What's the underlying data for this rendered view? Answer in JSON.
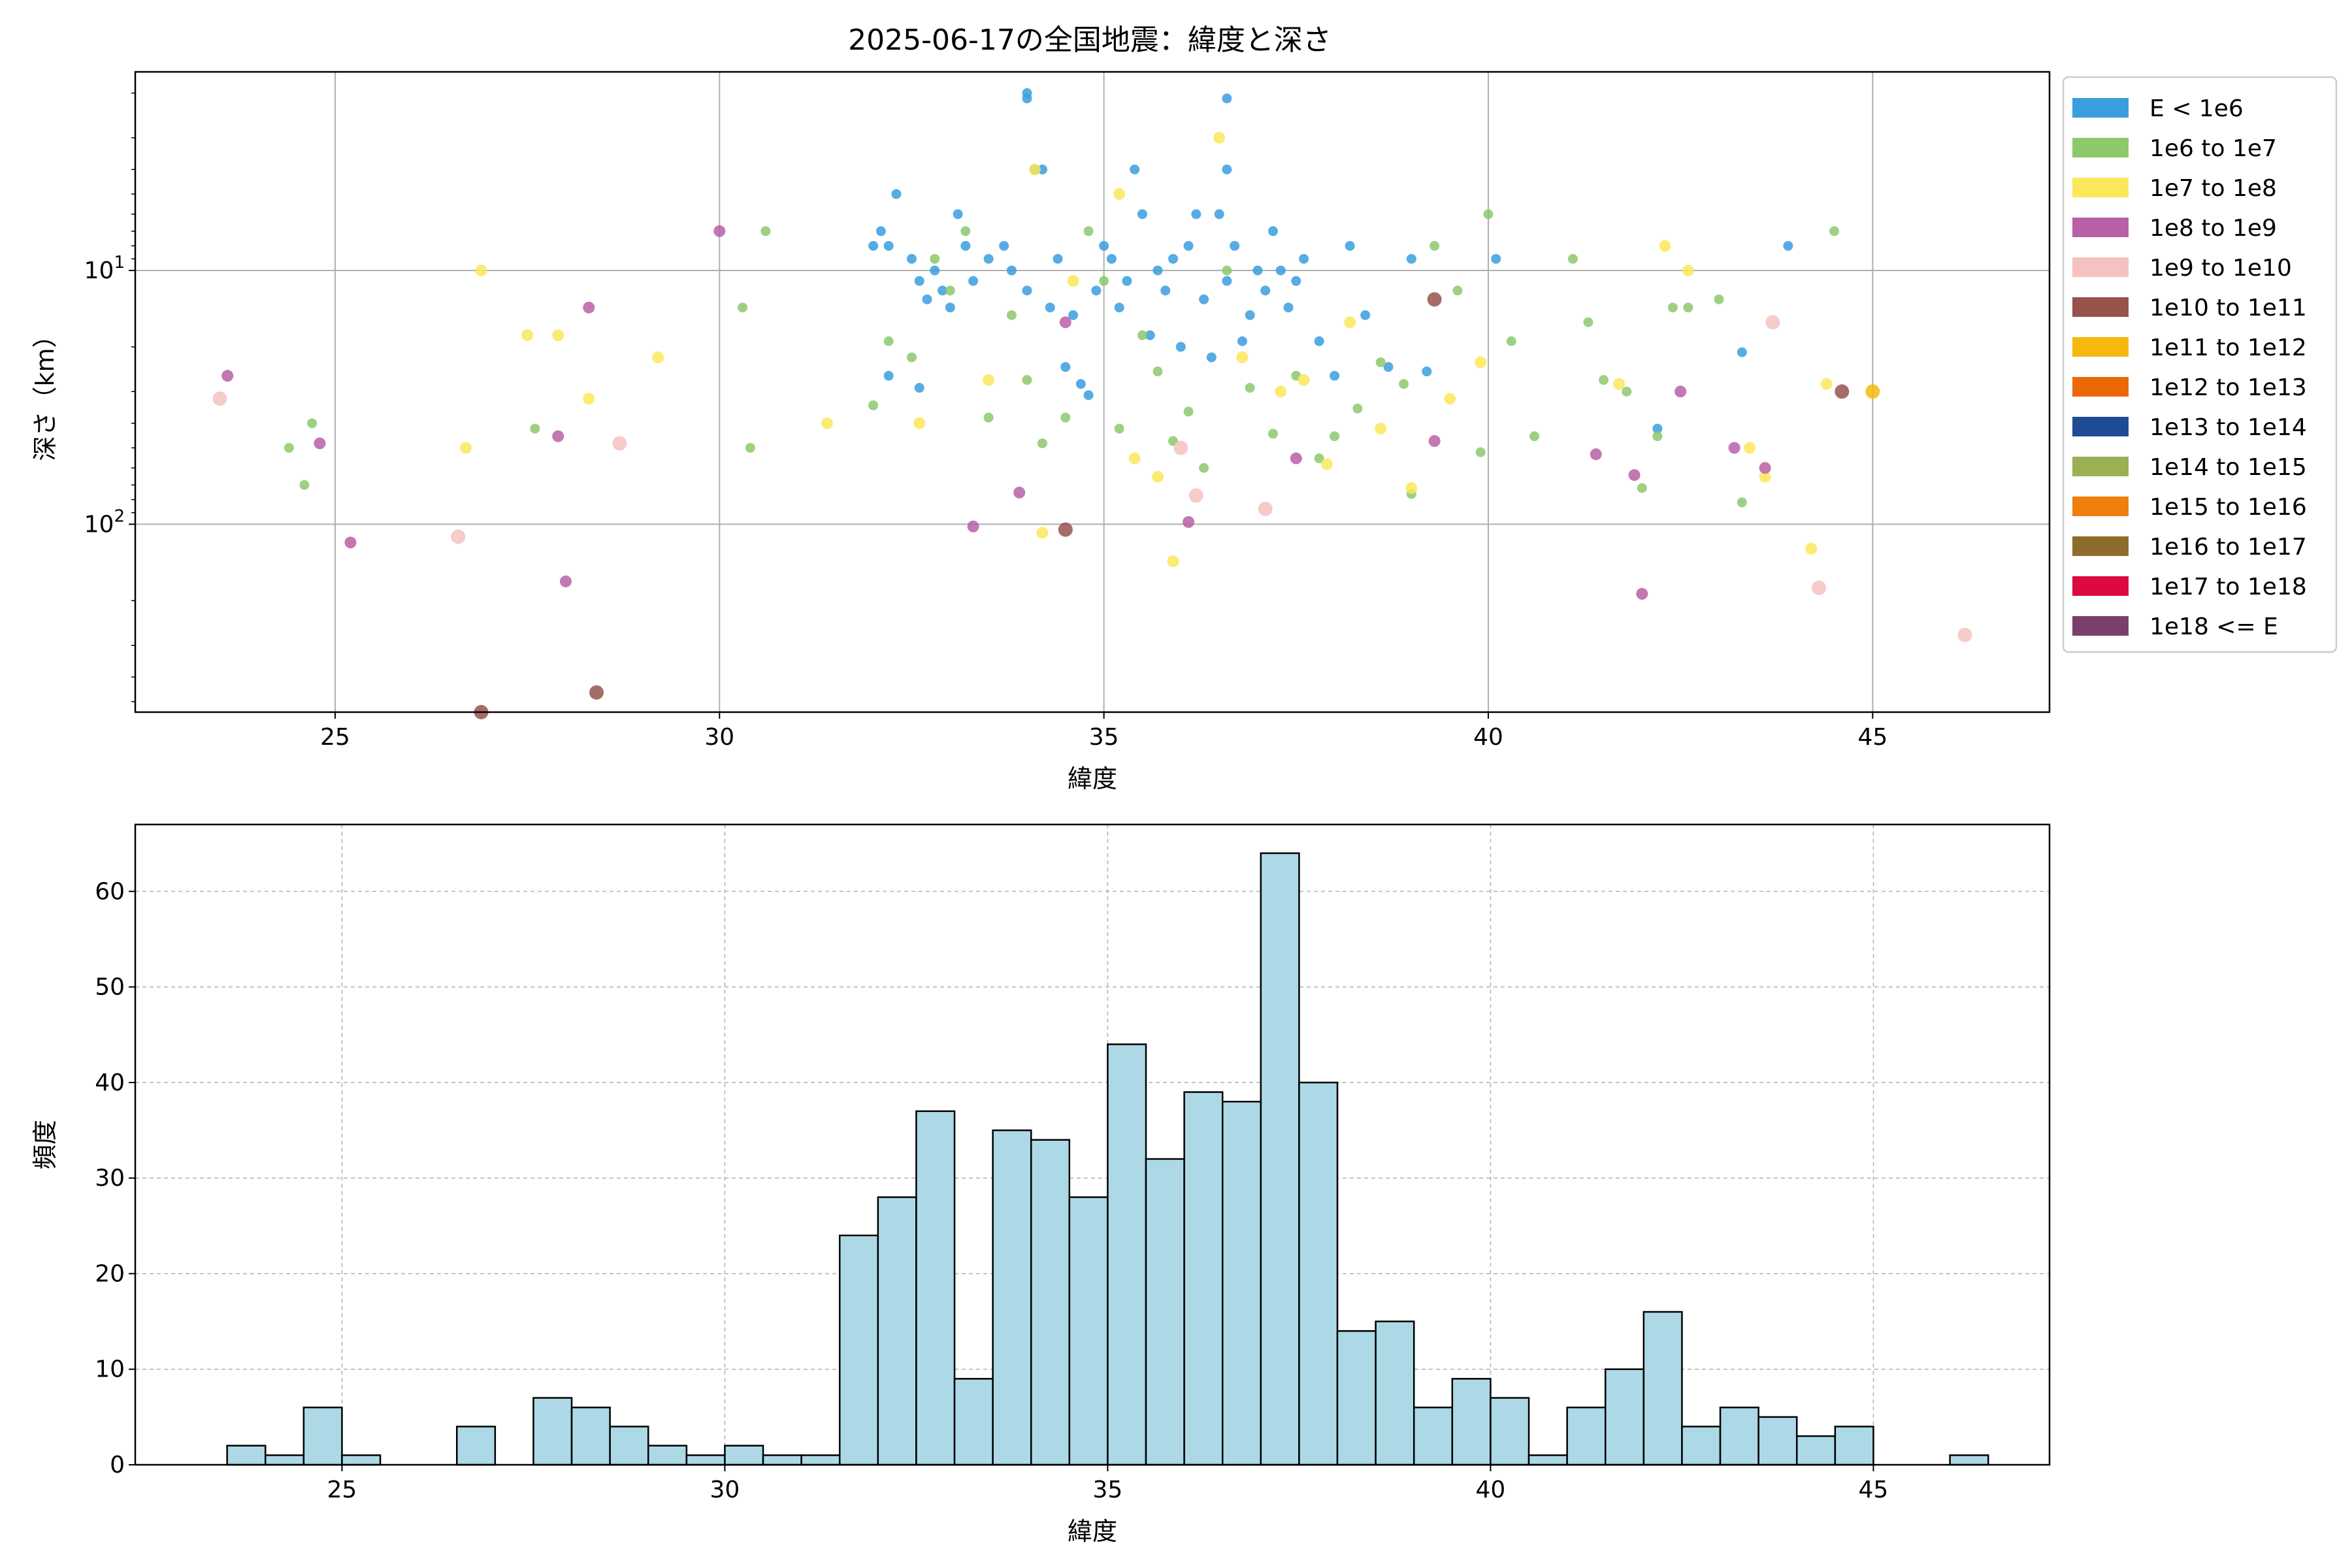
{
  "chart_data": [
    {
      "type": "scatter",
      "title": "2025-06-17の全国地震：緯度と深さ",
      "xlabel": "緯度",
      "ylabel": "深さ（km）",
      "xlim": [
        22.4,
        47.3
      ],
      "ylim": [
        550,
        1.65
      ],
      "yscale": "log",
      "y_inverted": true,
      "grid": true,
      "legend_position": "outside-right-top",
      "x_ticks": [
        "25",
        "30",
        "35",
        "40",
        "45"
      ],
      "x_tick_values": [
        25,
        30,
        35,
        40,
        45
      ],
      "y_ticks": [
        "10^1",
        "10^2"
      ],
      "y_tick_values": [
        10,
        100
      ],
      "legend": [
        {
          "label": "E < 1e6",
          "color": "#3a9ede"
        },
        {
          "label": "1e6 to 1e7",
          "color": "#8cc96b"
        },
        {
          "label": "1e7 to 1e8",
          "color": "#fbe85a"
        },
        {
          "label": "1e8 to 1e9",
          "color": "#b85fa6"
        },
        {
          "label": "1e9 to 1e10",
          "color": "#f4c2c0"
        },
        {
          "label": "1e10 to 1e11",
          "color": "#97524c"
        },
        {
          "label": "1e11 to 1e12",
          "color": "#f7b80e"
        },
        {
          "label": "1e12 to 1e13",
          "color": "#ec6707"
        },
        {
          "label": "1e13 to 1e14",
          "color": "#1f4b94"
        },
        {
          "label": "1e14 to 1e15",
          "color": "#9bb053"
        },
        {
          "label": "1e15 to 1e16",
          "color": "#ee7f0c"
        },
        {
          "label": "1e16 to 1e17",
          "color": "#8e6c2b"
        },
        {
          "label": "1e17 to 1e18",
          "color": "#dd0a3f"
        },
        {
          "label": "1e18 <= E",
          "color": "#7b3f6b"
        }
      ],
      "series": [
        {
          "name": "E < 1e6",
          "color": "#3a9ede",
          "points": [
            [
              32.0,
              8
            ],
            [
              32.1,
              7
            ],
            [
              32.2,
              8
            ],
            [
              32.3,
              5
            ],
            [
              32.5,
              9
            ],
            [
              32.6,
              11
            ],
            [
              32.7,
              13
            ],
            [
              32.8,
              10
            ],
            [
              32.9,
              12
            ],
            [
              33.0,
              14
            ],
            [
              33.1,
              6
            ],
            [
              33.2,
              8
            ],
            [
              33.3,
              11
            ],
            [
              33.5,
              9
            ],
            [
              33.7,
              8
            ],
            [
              33.8,
              10
            ],
            [
              34.0,
              12
            ],
            [
              34.0,
              2
            ],
            [
              34.1,
              4
            ],
            [
              34.2,
              4
            ],
            [
              34.3,
              14
            ],
            [
              34.4,
              9
            ],
            [
              34.5,
              24
            ],
            [
              34.6,
              15
            ],
            [
              34.7,
              28
            ],
            [
              34.8,
              31
            ],
            [
              34.9,
              12
            ],
            [
              35.0,
              8
            ],
            [
              35.1,
              9
            ],
            [
              35.2,
              14
            ],
            [
              35.3,
              11
            ],
            [
              35.4,
              4
            ],
            [
              35.5,
              6
            ],
            [
              35.6,
              18
            ],
            [
              35.7,
              10
            ],
            [
              35.8,
              12
            ],
            [
              35.9,
              9
            ],
            [
              36.0,
              20
            ],
            [
              36.1,
              8
            ],
            [
              36.2,
              6
            ],
            [
              36.3,
              13
            ],
            [
              36.4,
              22
            ],
            [
              36.5,
              6
            ],
            [
              36.6,
              11
            ],
            [
              36.7,
              8
            ],
            [
              36.8,
              19
            ],
            [
              36.9,
              15
            ],
            [
              37.0,
              10
            ],
            [
              37.1,
              12
            ],
            [
              37.2,
              7
            ],
            [
              37.3,
              10
            ],
            [
              37.4,
              14
            ],
            [
              37.5,
              11
            ],
            [
              37.6,
              9
            ],
            [
              37.8,
              19
            ],
            [
              38.0,
              26
            ],
            [
              38.2,
              8
            ],
            [
              38.4,
              15
            ],
            [
              38.7,
              24
            ],
            [
              39.0,
              9
            ],
            [
              39.2,
              25
            ],
            [
              40.1,
              9
            ],
            [
              42.2,
              42
            ],
            [
              43.3,
              21
            ],
            [
              43.9,
              8
            ],
            [
              36.6,
              4
            ],
            [
              34.0,
              2.1
            ],
            [
              36.6,
              2.1
            ],
            [
              32.2,
              26
            ],
            [
              32.6,
              29
            ]
          ]
        },
        {
          "name": "1e6 to 1e7",
          "color": "#8cc96b",
          "points": [
            [
              24.4,
              50
            ],
            [
              24.6,
              70
            ],
            [
              24.7,
              40
            ],
            [
              27.6,
              42
            ],
            [
              30.3,
              14
            ],
            [
              30.4,
              50
            ],
            [
              30.6,
              7
            ],
            [
              32.0,
              34
            ],
            [
              32.2,
              19
            ],
            [
              32.5,
              22
            ],
            [
              32.8,
              9
            ],
            [
              33.0,
              12
            ],
            [
              33.2,
              7
            ],
            [
              33.5,
              38
            ],
            [
              33.8,
              15
            ],
            [
              34.0,
              27
            ],
            [
              34.2,
              48
            ],
            [
              34.5,
              38
            ],
            [
              34.8,
              7
            ],
            [
              35.0,
              11
            ],
            [
              35.2,
              42
            ],
            [
              35.5,
              18
            ],
            [
              35.7,
              25
            ],
            [
              35.9,
              47
            ],
            [
              36.1,
              36
            ],
            [
              36.3,
              60
            ],
            [
              36.6,
              10
            ],
            [
              36.9,
              29
            ],
            [
              37.2,
              44
            ],
            [
              37.5,
              26
            ],
            [
              37.8,
              55
            ],
            [
              38.0,
              45
            ],
            [
              38.3,
              35
            ],
            [
              38.6,
              23
            ],
            [
              38.9,
              28
            ],
            [
              39.0,
              76
            ],
            [
              39.3,
              8
            ],
            [
              39.6,
              12
            ],
            [
              39.9,
              52
            ],
            [
              40.0,
              6
            ],
            [
              40.3,
              19
            ],
            [
              40.6,
              45
            ],
            [
              41.1,
              9
            ],
            [
              41.3,
              16
            ],
            [
              41.5,
              27
            ],
            [
              41.8,
              30
            ],
            [
              42.0,
              72
            ],
            [
              42.2,
              45
            ],
            [
              42.4,
              14
            ],
            [
              42.6,
              14
            ],
            [
              43.0,
              13
            ],
            [
              43.3,
              82
            ],
            [
              44.5,
              7
            ]
          ]
        },
        {
          "name": "1e7 to 1e8",
          "color": "#fbe85a",
          "points": [
            [
              26.9,
              10
            ],
            [
              26.7,
              50
            ],
            [
              27.5,
              18
            ],
            [
              27.9,
              18
            ],
            [
              28.3,
              32
            ],
            [
              29.2,
              22
            ],
            [
              31.4,
              40
            ],
            [
              32.6,
              40
            ],
            [
              33.5,
              27
            ],
            [
              34.1,
              4
            ],
            [
              34.2,
              108
            ],
            [
              34.6,
              11
            ],
            [
              35.2,
              5
            ],
            [
              35.4,
              55
            ],
            [
              35.7,
              65
            ],
            [
              35.9,
              140
            ],
            [
              36.5,
              3
            ],
            [
              36.8,
              22
            ],
            [
              37.3,
              30
            ],
            [
              37.6,
              27
            ],
            [
              37.9,
              58
            ],
            [
              38.2,
              16
            ],
            [
              38.6,
              42
            ],
            [
              39.0,
              72
            ],
            [
              39.5,
              32
            ],
            [
              39.9,
              23
            ],
            [
              41.7,
              28
            ],
            [
              42.3,
              8
            ],
            [
              42.6,
              10
            ],
            [
              43.4,
              50
            ],
            [
              43.6,
              65
            ],
            [
              44.2,
              125
            ],
            [
              44.4,
              28
            ]
          ]
        },
        {
          "name": "1e8 to 1e9",
          "color": "#b85fa6",
          "points": [
            [
              23.6,
              26
            ],
            [
              24.8,
              48
            ],
            [
              25.2,
              118
            ],
            [
              27.9,
              45
            ],
            [
              28.0,
              168
            ],
            [
              28.3,
              14
            ],
            [
              30.0,
              7
            ],
            [
              33.3,
              102
            ],
            [
              33.9,
              75
            ],
            [
              34.5,
              16
            ],
            [
              36.1,
              98
            ],
            [
              37.5,
              55
            ],
            [
              39.3,
              47
            ],
            [
              41.4,
              53
            ],
            [
              41.9,
              64
            ],
            [
              42.0,
              188
            ],
            [
              42.5,
              30
            ],
            [
              43.2,
              50
            ],
            [
              43.6,
              60
            ]
          ]
        },
        {
          "name": "1e9 to 1e10",
          "color": "#f4c2c0",
          "points": [
            [
              23.5,
              32
            ],
            [
              26.6,
              112
            ],
            [
              28.7,
              48
            ],
            [
              36.0,
              50
            ],
            [
              36.2,
              77
            ],
            [
              37.1,
              87
            ],
            [
              43.7,
              16
            ],
            [
              44.3,
              178
            ],
            [
              46.2,
              273
            ]
          ]
        },
        {
          "name": "1e10 to 1e11",
          "color": "#97524c",
          "points": [
            [
              26.9,
              550
            ],
            [
              28.4,
              460
            ],
            [
              34.5,
              105
            ],
            [
              39.3,
              13
            ],
            [
              44.6,
              30
            ]
          ]
        },
        {
          "name": "1e11 to 1e12",
          "color": "#f7b80e",
          "points": [
            [
              45.0,
              30
            ]
          ]
        }
      ]
    },
    {
      "type": "bar",
      "subtype": "histogram",
      "title": "",
      "xlabel": "緯度",
      "ylabel": "頻度",
      "xlim": [
        22.3,
        47.3
      ],
      "ylim": [
        0,
        67
      ],
      "grid": true,
      "bar_color": "#add8e6",
      "edge_color": "#000000",
      "bin_start": 23.5,
      "bin_width": 0.5,
      "values": [
        2,
        1,
        6,
        1,
        0,
        0,
        4,
        0,
        7,
        6,
        4,
        2,
        1,
        2,
        1,
        1,
        24,
        28,
        37,
        9,
        35,
        34,
        28,
        44,
        32,
        39,
        38,
        64,
        40,
        14,
        15,
        6,
        9,
        7,
        1,
        6,
        10,
        16,
        4,
        6,
        5,
        3,
        4,
        0,
        0,
        1
      ],
      "x_ticks": [
        "25",
        "30",
        "35",
        "40",
        "45"
      ],
      "x_tick_values": [
        25,
        30,
        35,
        40,
        45
      ],
      "y_ticks": [
        "0",
        "10",
        "20",
        "30",
        "40",
        "50",
        "60"
      ],
      "y_tick_values": [
        0,
        10,
        20,
        30,
        40,
        50,
        60
      ]
    }
  ]
}
